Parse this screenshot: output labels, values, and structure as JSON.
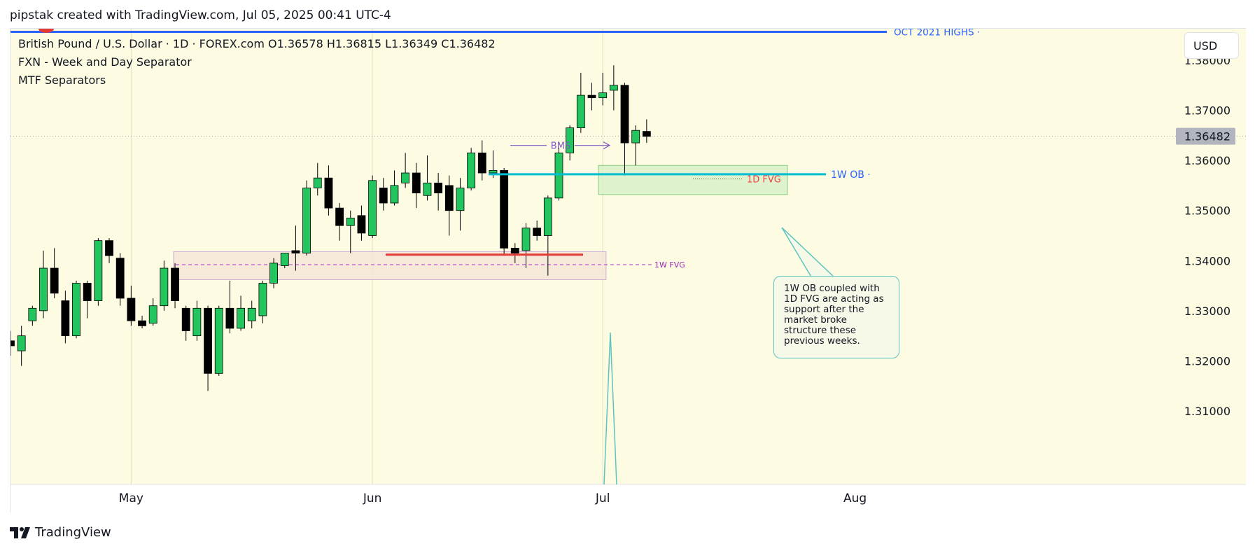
{
  "header": {
    "title": "pipstak created with TradingView.com, Jul 05, 2025 00:41 UTC-4"
  },
  "legend": {
    "symbol_line": "British Pound / U.S. Dollar · 1D · FOREX.com  O1.36578  H1.36815  L1.36349  C1.36482",
    "indicator1": "FXN - Week and Day Separator",
    "indicator2": "MTF Separators"
  },
  "currency": "USD",
  "footer": {
    "brand": "TradingView"
  },
  "note": {
    "text": "1W OB coupled with 1D FVG are acting as support after the market broke structure these previous weeks."
  },
  "chart_data": {
    "type": "candlestick",
    "symbol": "GBP/USD",
    "timeframe": "1D",
    "ylim": [
      1.303,
      1.387
    ],
    "y_ticks": [
      1.31,
      1.32,
      1.33,
      1.34,
      1.35,
      1.36,
      1.37,
      1.38
    ],
    "y_tick_labels": [
      "1.31000",
      "1.32000",
      "1.33000",
      "1.34000",
      "1.35000",
      "1.36000",
      "1.37000",
      "1.38000"
    ],
    "x_labels": [
      {
        "label": "May",
        "index": 11
      },
      {
        "label": "Jun",
        "index": 33
      },
      {
        "label": "Jul",
        "index": 54
      },
      {
        "label": "Aug",
        "index": 77
      }
    ],
    "last_price": "1.36482",
    "candles": [
      {
        "o": 1.324,
        "h": 1.326,
        "l": 1.321,
        "c": 1.323
      },
      {
        "o": 1.322,
        "h": 1.327,
        "l": 1.319,
        "c": 1.325
      },
      {
        "o": 1.328,
        "h": 1.331,
        "l": 1.327,
        "c": 1.3305
      },
      {
        "o": 1.33,
        "h": 1.342,
        "l": 1.3285,
        "c": 1.3385
      },
      {
        "o": 1.3385,
        "h": 1.3425,
        "l": 1.3325,
        "c": 1.3335
      },
      {
        "o": 1.332,
        "h": 1.334,
        "l": 1.3235,
        "c": 1.325
      },
      {
        "o": 1.325,
        "h": 1.336,
        "l": 1.3245,
        "c": 1.3355
      },
      {
        "o": 1.3355,
        "h": 1.336,
        "l": 1.3285,
        "c": 1.332
      },
      {
        "o": 1.332,
        "h": 1.3445,
        "l": 1.331,
        "c": 1.344
      },
      {
        "o": 1.344,
        "h": 1.3445,
        "l": 1.3395,
        "c": 1.341
      },
      {
        "o": 1.3405,
        "h": 1.3415,
        "l": 1.331,
        "c": 1.3325
      },
      {
        "o": 1.3325,
        "h": 1.335,
        "l": 1.327,
        "c": 1.328
      },
      {
        "o": 1.328,
        "h": 1.329,
        "l": 1.3265,
        "c": 1.327
      },
      {
        "o": 1.3275,
        "h": 1.3325,
        "l": 1.327,
        "c": 1.331
      },
      {
        "o": 1.331,
        "h": 1.34,
        "l": 1.33,
        "c": 1.3385
      },
      {
        "o": 1.3385,
        "h": 1.3395,
        "l": 1.3305,
        "c": 1.332
      },
      {
        "o": 1.3305,
        "h": 1.331,
        "l": 1.324,
        "c": 1.326
      },
      {
        "o": 1.325,
        "h": 1.332,
        "l": 1.324,
        "c": 1.3305
      },
      {
        "o": 1.3305,
        "h": 1.331,
        "l": 1.314,
        "c": 1.3175
      },
      {
        "o": 1.3175,
        "h": 1.331,
        "l": 1.317,
        "c": 1.3305
      },
      {
        "o": 1.3305,
        "h": 1.336,
        "l": 1.3255,
        "c": 1.3265
      },
      {
        "o": 1.3265,
        "h": 1.333,
        "l": 1.326,
        "c": 1.3305
      },
      {
        "o": 1.328,
        "h": 1.332,
        "l": 1.3265,
        "c": 1.3305
      },
      {
        "o": 1.329,
        "h": 1.336,
        "l": 1.3275,
        "c": 1.3355
      },
      {
        "o": 1.3355,
        "h": 1.3405,
        "l": 1.3345,
        "c": 1.3395
      },
      {
        "o": 1.339,
        "h": 1.3415,
        "l": 1.3385,
        "c": 1.3415
      },
      {
        "o": 1.342,
        "h": 1.347,
        "l": 1.338,
        "c": 1.3415
      },
      {
        "o": 1.3415,
        "h": 1.356,
        "l": 1.341,
        "c": 1.3545
      },
      {
        "o": 1.3545,
        "h": 1.3595,
        "l": 1.353,
        "c": 1.3565
      },
      {
        "o": 1.3565,
        "h": 1.359,
        "l": 1.349,
        "c": 1.3505
      },
      {
        "o": 1.3505,
        "h": 1.3515,
        "l": 1.344,
        "c": 1.347
      },
      {
        "o": 1.347,
        "h": 1.35,
        "l": 1.3415,
        "c": 1.3485
      },
      {
        "o": 1.349,
        "h": 1.351,
        "l": 1.344,
        "c": 1.3455
      },
      {
        "o": 1.345,
        "h": 1.357,
        "l": 1.3445,
        "c": 1.356
      },
      {
        "o": 1.3545,
        "h": 1.3565,
        "l": 1.35,
        "c": 1.3515
      },
      {
        "o": 1.3515,
        "h": 1.358,
        "l": 1.351,
        "c": 1.355
      },
      {
        "o": 1.3555,
        "h": 1.3615,
        "l": 1.3545,
        "c": 1.3575
      },
      {
        "o": 1.3575,
        "h": 1.3595,
        "l": 1.3505,
        "c": 1.3535
      },
      {
        "o": 1.353,
        "h": 1.361,
        "l": 1.352,
        "c": 1.3555
      },
      {
        "o": 1.3555,
        "h": 1.3575,
        "l": 1.35,
        "c": 1.3535
      },
      {
        "o": 1.355,
        "h": 1.357,
        "l": 1.345,
        "c": 1.35
      },
      {
        "o": 1.35,
        "h": 1.3565,
        "l": 1.346,
        "c": 1.3545
      },
      {
        "o": 1.3545,
        "h": 1.3625,
        "l": 1.354,
        "c": 1.3615
      },
      {
        "o": 1.3615,
        "h": 1.364,
        "l": 1.356,
        "c": 1.3575
      },
      {
        "o": 1.3575,
        "h": 1.362,
        "l": 1.3565,
        "c": 1.358
      },
      {
        "o": 1.358,
        "h": 1.3585,
        "l": 1.341,
        "c": 1.3425
      },
      {
        "o": 1.3425,
        "h": 1.3435,
        "l": 1.3395,
        "c": 1.3415
      },
      {
        "o": 1.342,
        "h": 1.3475,
        "l": 1.3385,
        "c": 1.3465
      },
      {
        "o": 1.3465,
        "h": 1.348,
        "l": 1.344,
        "c": 1.345
      },
      {
        "o": 1.345,
        "h": 1.353,
        "l": 1.337,
        "c": 1.3525
      },
      {
        "o": 1.3525,
        "h": 1.3625,
        "l": 1.352,
        "c": 1.3615
      },
      {
        "o": 1.3615,
        "h": 1.367,
        "l": 1.36,
        "c": 1.3665
      },
      {
        "o": 1.3665,
        "h": 1.3775,
        "l": 1.3655,
        "c": 1.373
      },
      {
        "o": 1.373,
        "h": 1.3755,
        "l": 1.37,
        "c": 1.3725
      },
      {
        "o": 1.3725,
        "h": 1.3775,
        "l": 1.371,
        "c": 1.3735
      },
      {
        "o": 1.374,
        "h": 1.379,
        "l": 1.37,
        "c": 1.375
      },
      {
        "o": 1.375,
        "h": 1.3755,
        "l": 1.357,
        "c": 1.3635
      },
      {
        "o": 1.3635,
        "h": 1.367,
        "l": 1.359,
        "c": 1.366
      },
      {
        "o": 1.3658,
        "h": 1.3682,
        "l": 1.3635,
        "c": 1.3648
      }
    ],
    "annotations": {
      "oct_highs": {
        "price": 1.38565,
        "label": "OCT 2021 HIGHS"
      },
      "ob_1w": {
        "price": 1.35725,
        "label": "1W OB"
      },
      "fvg_1d": {
        "top": 1.359,
        "bottom": 1.3532,
        "mid": 1.3563,
        "label": "1D FVG"
      },
      "fvg_1w": {
        "top": 1.3418,
        "bottom": 1.3362,
        "mid": 1.3392,
        "label": "1W FVG"
      },
      "red_level": {
        "price": 1.3412
      },
      "bms": {
        "price": 1.363,
        "label": "BMS"
      }
    },
    "colors": {
      "up": "#22c55e",
      "down": "#000000",
      "background": "#fdfbe2",
      "oct_line": "#2962ff",
      "ob_line": "#00bcd4",
      "fvg_1d_text": "#ef4444",
      "fvg_1w_text": "#9c27b0",
      "red_level": "#e53935",
      "bms": "#7e57c2"
    }
  }
}
